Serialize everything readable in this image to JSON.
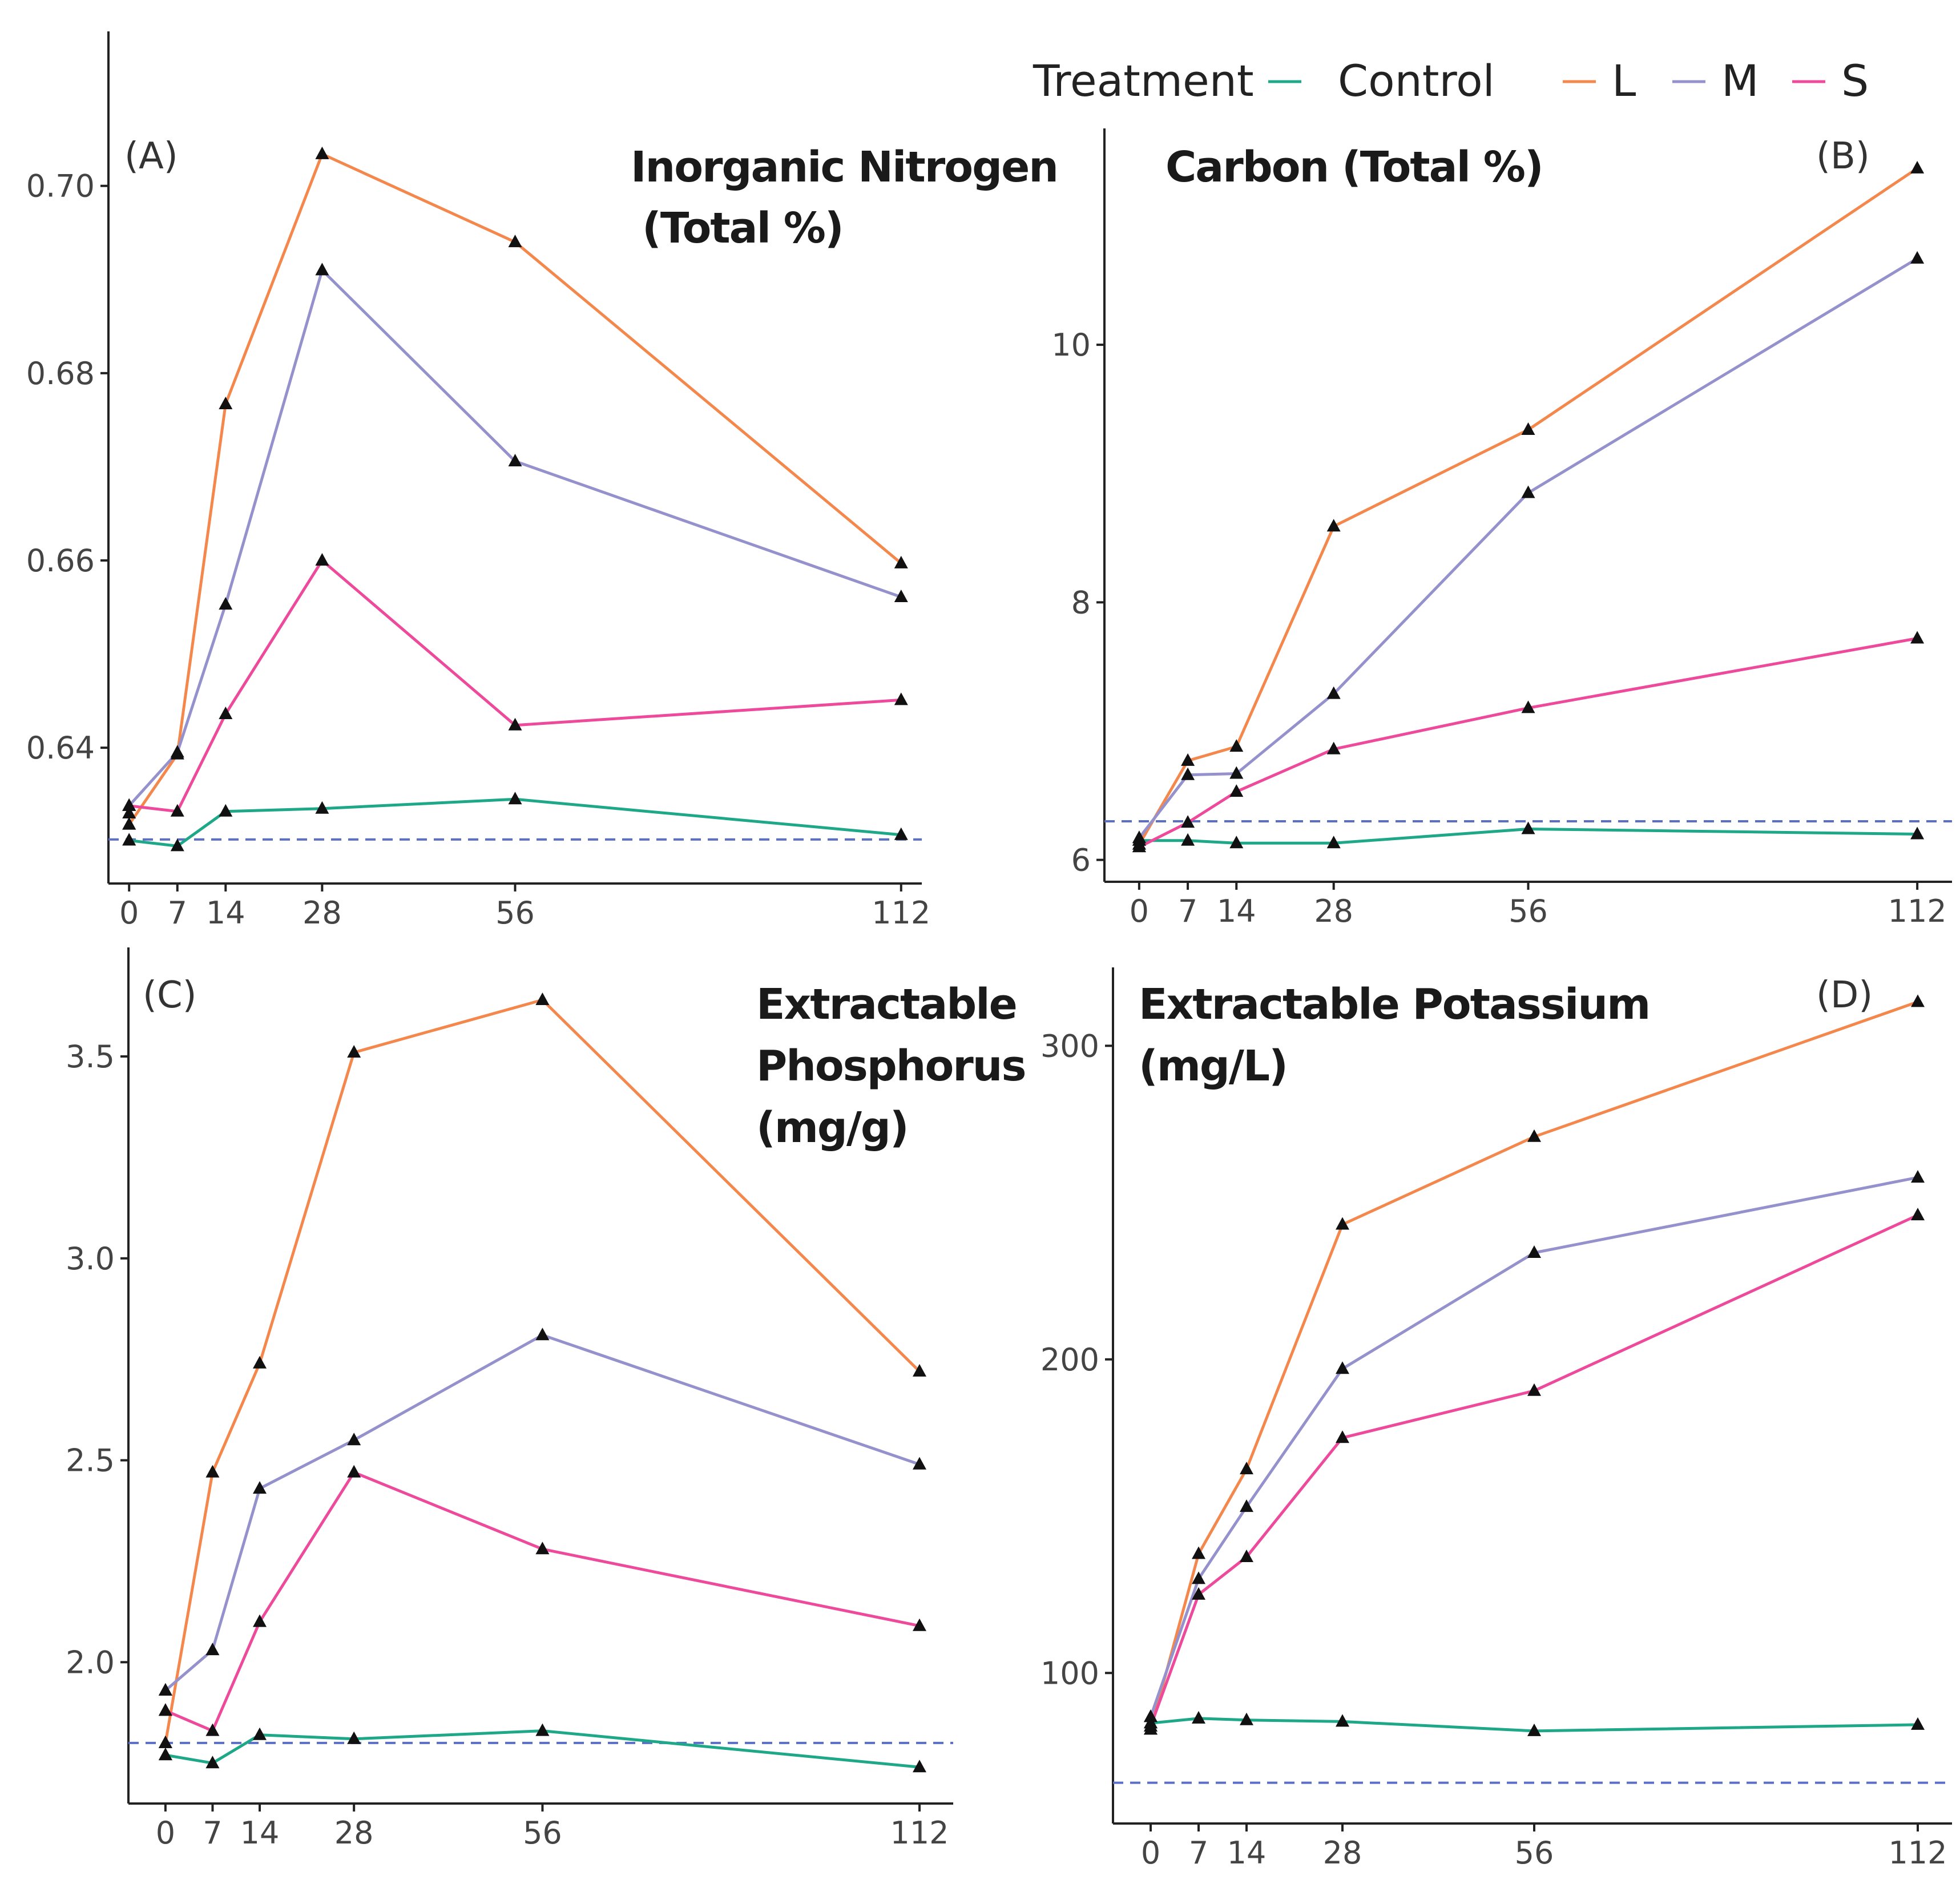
{
  "legend": {
    "title": "Treatment",
    "entries": [
      {
        "key": "Control",
        "label": "Control",
        "color": "#1fa888"
      },
      {
        "key": "L",
        "label": "L",
        "color": "#f4874b"
      },
      {
        "key": "M",
        "label": "M",
        "color": "#9591cc"
      },
      {
        "key": "S",
        "label": "S",
        "color": "#ee4a9b"
      }
    ]
  },
  "chart_data": [
    {
      "type": "line",
      "panel": "(A)",
      "title": "Inorganic Nitrogen",
      "title2": "(Total %)",
      "x": [
        0,
        7,
        14,
        28,
        56,
        112
      ],
      "xticks": [
        0,
        7,
        14,
        28,
        56,
        112
      ],
      "xticklabels": [
        "0",
        "7",
        "14",
        "28",
        "56",
        "112"
      ],
      "xlim": [
        -3,
        115
      ],
      "ylim": [
        0.6255,
        0.7165
      ],
      "yticks": [
        0.64,
        0.66,
        0.68,
        0.7
      ],
      "yticklabels": [
        "0.64",
        "0.66",
        "0.68",
        "0.70"
      ],
      "reference_line": 0.6302,
      "series": [
        {
          "name": "Control",
          "x": [
            0,
            0,
            7,
            14,
            28,
            56,
            112
          ],
          "values": [
            0.6301,
            0.6301,
            0.6295,
            0.6332,
            0.6335,
            0.6345,
            0.6307
          ]
        },
        {
          "name": "L",
          "x": [
            0,
            0,
            7,
            14,
            28,
            56,
            112
          ],
          "values": [
            0.6318,
            0.6318,
            0.6393,
            0.6767,
            0.7034,
            0.694,
            0.6597
          ]
        },
        {
          "name": "M",
          "x": [
            0,
            0,
            7,
            14,
            28,
            56,
            112
          ],
          "values": [
            0.6338,
            0.6338,
            0.6395,
            0.6553,
            0.691,
            0.6706,
            0.6561
          ]
        },
        {
          "name": "S",
          "x": [
            0,
            0,
            7,
            14,
            28,
            56,
            112
          ],
          "values": [
            0.633,
            0.6338,
            0.6332,
            0.6436,
            0.66,
            0.6424,
            0.6451
          ]
        }
      ]
    },
    {
      "type": "line",
      "panel": "(B)",
      "title": "Carbon (Total %)",
      "x": [
        0,
        7,
        14,
        28,
        56,
        112
      ],
      "xticks": [
        0,
        7,
        14,
        28,
        56,
        112
      ],
      "xticklabels": [
        "0",
        "7",
        "14",
        "28",
        "56",
        "112"
      ],
      "xlim": [
        -5,
        117
      ],
      "ylim": [
        5.83,
        11.68
      ],
      "yticks": [
        6,
        8,
        10
      ],
      "yticklabels": [
        "6",
        "8",
        "10"
      ],
      "reference_line": 6.3,
      "series": [
        {
          "name": "Control",
          "x": [
            0,
            0,
            7,
            14,
            28,
            56,
            112
          ],
          "values": [
            6.15,
            6.15,
            6.15,
            6.13,
            6.13,
            6.24,
            6.2
          ]
        },
        {
          "name": "L",
          "x": [
            0,
            0,
            7,
            14,
            28,
            56,
            112
          ],
          "values": [
            6.12,
            6.12,
            6.77,
            6.88,
            8.59,
            9.34,
            11.37
          ]
        },
        {
          "name": "M",
          "x": [
            0,
            0,
            7,
            14,
            28,
            56,
            112
          ],
          "values": [
            6.17,
            6.17,
            6.66,
            6.67,
            7.29,
            8.85,
            10.67
          ]
        },
        {
          "name": "S",
          "x": [
            0,
            0,
            7,
            14,
            28,
            56,
            112
          ],
          "values": [
            6.1,
            6.1,
            6.29,
            6.53,
            6.86,
            7.18,
            7.72
          ]
        }
      ]
    },
    {
      "type": "line",
      "panel": "(C)",
      "title": "Extractable",
      "title2": "Phosphorus",
      "title3": "(mg/g)",
      "x": [
        0,
        7,
        14,
        28,
        56,
        112
      ],
      "xticks": [
        0,
        7,
        14,
        28,
        56,
        112
      ],
      "xticklabels": [
        "0",
        "7",
        "14",
        "28",
        "56",
        "112"
      ],
      "xlim": [
        -5.5,
        117
      ],
      "ylim": [
        1.65,
        3.77
      ],
      "yticks": [
        2.0,
        2.5,
        3.0,
        3.5
      ],
      "yticklabels": [
        "2.0",
        "2.5",
        "3.0",
        "3.5"
      ],
      "reference_line": 1.8,
      "series": [
        {
          "name": "Control",
          "x": [
            0,
            0,
            7,
            14,
            28,
            56,
            112
          ],
          "values": [
            1.77,
            1.77,
            1.75,
            1.82,
            1.81,
            1.83,
            1.74
          ]
        },
        {
          "name": "L",
          "x": [
            0,
            0,
            7,
            14,
            28,
            56,
            112
          ],
          "values": [
            1.8,
            1.8,
            2.47,
            2.74,
            3.51,
            3.64,
            2.72
          ]
        },
        {
          "name": "M",
          "x": [
            0,
            0,
            7,
            14,
            28,
            56,
            112
          ],
          "values": [
            1.93,
            1.93,
            2.03,
            2.43,
            2.55,
            2.81,
            2.49
          ]
        },
        {
          "name": "S",
          "x": [
            0,
            0,
            7,
            14,
            28,
            56,
            112
          ],
          "values": [
            1.88,
            1.88,
            1.83,
            2.1,
            2.47,
            2.28,
            2.09
          ]
        }
      ]
    },
    {
      "type": "line",
      "panel": "(D)",
      "title": "Extractable Potassium",
      "title2": "(mg/L)",
      "x": [
        0,
        7,
        14,
        28,
        56,
        112
      ],
      "xticks": [
        0,
        7,
        14,
        28,
        56,
        112
      ],
      "xticklabels": [
        "0",
        "7",
        "14",
        "28",
        "56",
        "112"
      ],
      "xlim": [
        -5.5,
        117
      ],
      "ylim": [
        52,
        325
      ],
      "yticks": [
        100,
        200,
        300
      ],
      "yticklabels": [
        "100",
        "200",
        "300"
      ],
      "reference_line": 65,
      "series": [
        {
          "name": "Control",
          "x": [
            0,
            0,
            7,
            14,
            28,
            56,
            112
          ],
          "values": [
            84,
            84,
            85.5,
            85,
            84.5,
            81.5,
            83.5
          ]
        },
        {
          "name": "L",
          "x": [
            0,
            0,
            7,
            14,
            28,
            56,
            112
          ],
          "values": [
            82,
            82,
            138,
            165,
            243,
            271,
            314
          ]
        },
        {
          "name": "M",
          "x": [
            0,
            0,
            7,
            14,
            28,
            56,
            112
          ],
          "values": [
            86,
            86,
            130,
            153,
            197,
            234,
            258
          ]
        },
        {
          "name": "S",
          "x": [
            0,
            0,
            7,
            14,
            28,
            56,
            112
          ],
          "values": [
            83,
            83,
            125,
            137,
            175,
            190,
            246
          ]
        }
      ]
    }
  ]
}
